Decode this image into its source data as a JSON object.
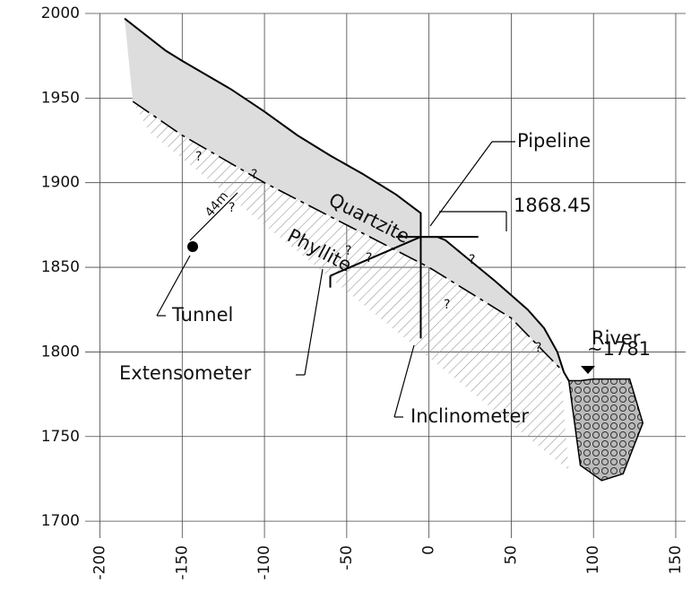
{
  "chart_data": {
    "type": "line",
    "xlim": [
      -209,
      156
    ],
    "ylim": [
      1690,
      2000
    ],
    "xticks": [
      -200,
      -150,
      -100,
      -50,
      0,
      50,
      100,
      150
    ],
    "yticks": [
      1700,
      1750,
      1800,
      1850,
      1900,
      1950,
      2000
    ],
    "grid": true,
    "series": [
      {
        "color": "#000000",
        "x": [
          -185,
          -160,
          -150,
          -120,
          -100,
          -80,
          -60,
          -40,
          -20,
          -5,
          -5,
          5,
          10,
          20,
          40,
          60,
          70,
          78,
          82,
          85
        ],
        "values": [
          1997,
          1978,
          1972,
          1955,
          1942,
          1928,
          1916,
          1905,
          1893,
          1882,
          1868,
          1868,
          1866,
          1858,
          1842,
          1825,
          1814,
          1800,
          1788,
          1783
        ]
      },
      {
        "color": "#000000",
        "x": [
          -180,
          -150,
          -100,
          -50,
          0,
          50,
          80
        ],
        "values": [
          1948,
          1928,
          1900,
          1875,
          1850,
          1820,
          1790
        ]
      }
    ],
    "annotations": [
      "Quartzite",
      "Phyllite",
      "Pipeline",
      "1868.45",
      "River",
      "~1781",
      "Tunnel",
      "44m",
      "Extensometer",
      "Inclinometer"
    ],
    "question_mark": "?"
  }
}
